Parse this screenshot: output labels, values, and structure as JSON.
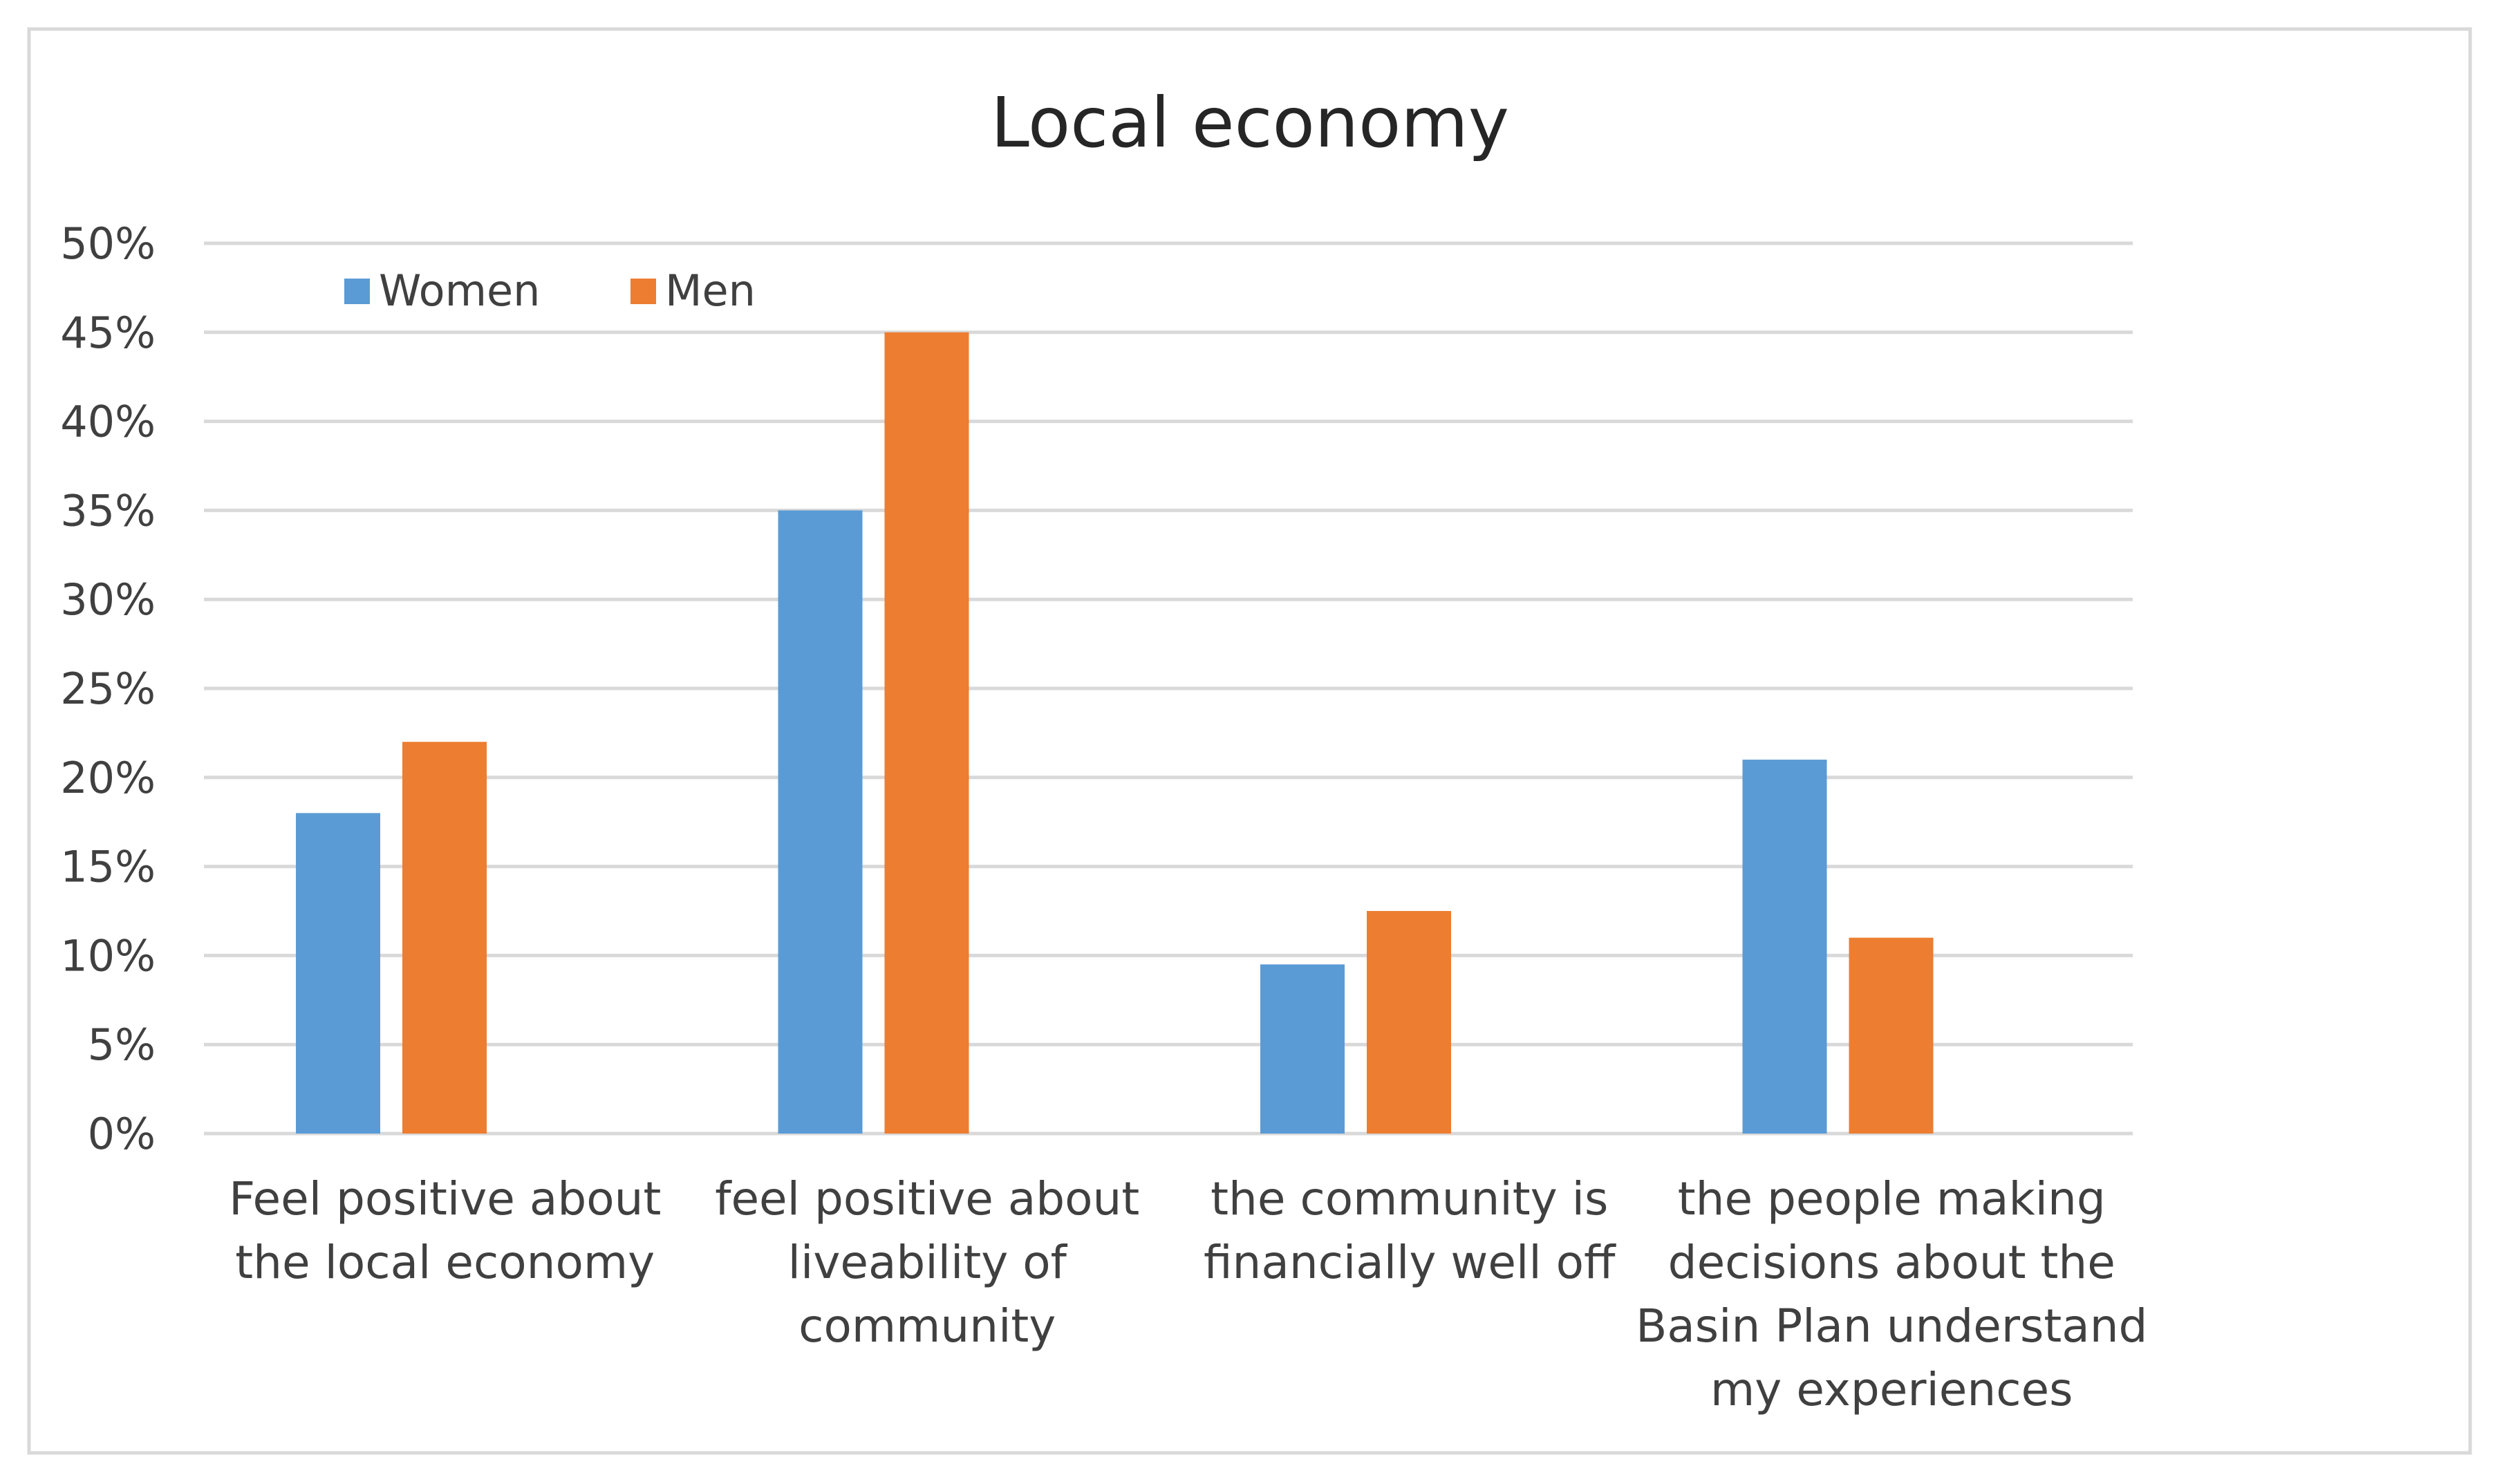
{
  "chart_data": {
    "type": "bar",
    "title": "Local economy",
    "xlabel": "",
    "ylabel": "",
    "ylim": [
      0,
      0.5
    ],
    "y_ticks": [
      "0%",
      "5%",
      "10%",
      "15%",
      "20%",
      "25%",
      "30%",
      "35%",
      "40%",
      "45%",
      "50%"
    ],
    "y_tick_values": [
      0,
      0.05,
      0.1,
      0.15,
      0.2,
      0.25,
      0.3,
      0.35,
      0.4,
      0.45,
      0.5
    ],
    "grid": true,
    "legend_position": "top-left",
    "categories": [
      [
        "Feel positive about",
        "the local economy"
      ],
      [
        "feel positive about",
        "liveability of",
        "community"
      ],
      [
        "the community is",
        "financially well off"
      ],
      [
        "the people making",
        "decisions about the",
        "Basin Plan understand",
        "my experiences"
      ]
    ],
    "series": [
      {
        "name": "Women",
        "color": "#5B9BD5",
        "values": [
          0.18,
          0.35,
          0.095,
          0.21
        ]
      },
      {
        "name": "Men",
        "color": "#ED7D31",
        "values": [
          0.22,
          0.45,
          0.125,
          0.11
        ]
      }
    ]
  },
  "colors": {
    "gridline": "#D9D9D9",
    "frame": "#D9D9D9",
    "text": "#404040",
    "title": "#262626"
  }
}
